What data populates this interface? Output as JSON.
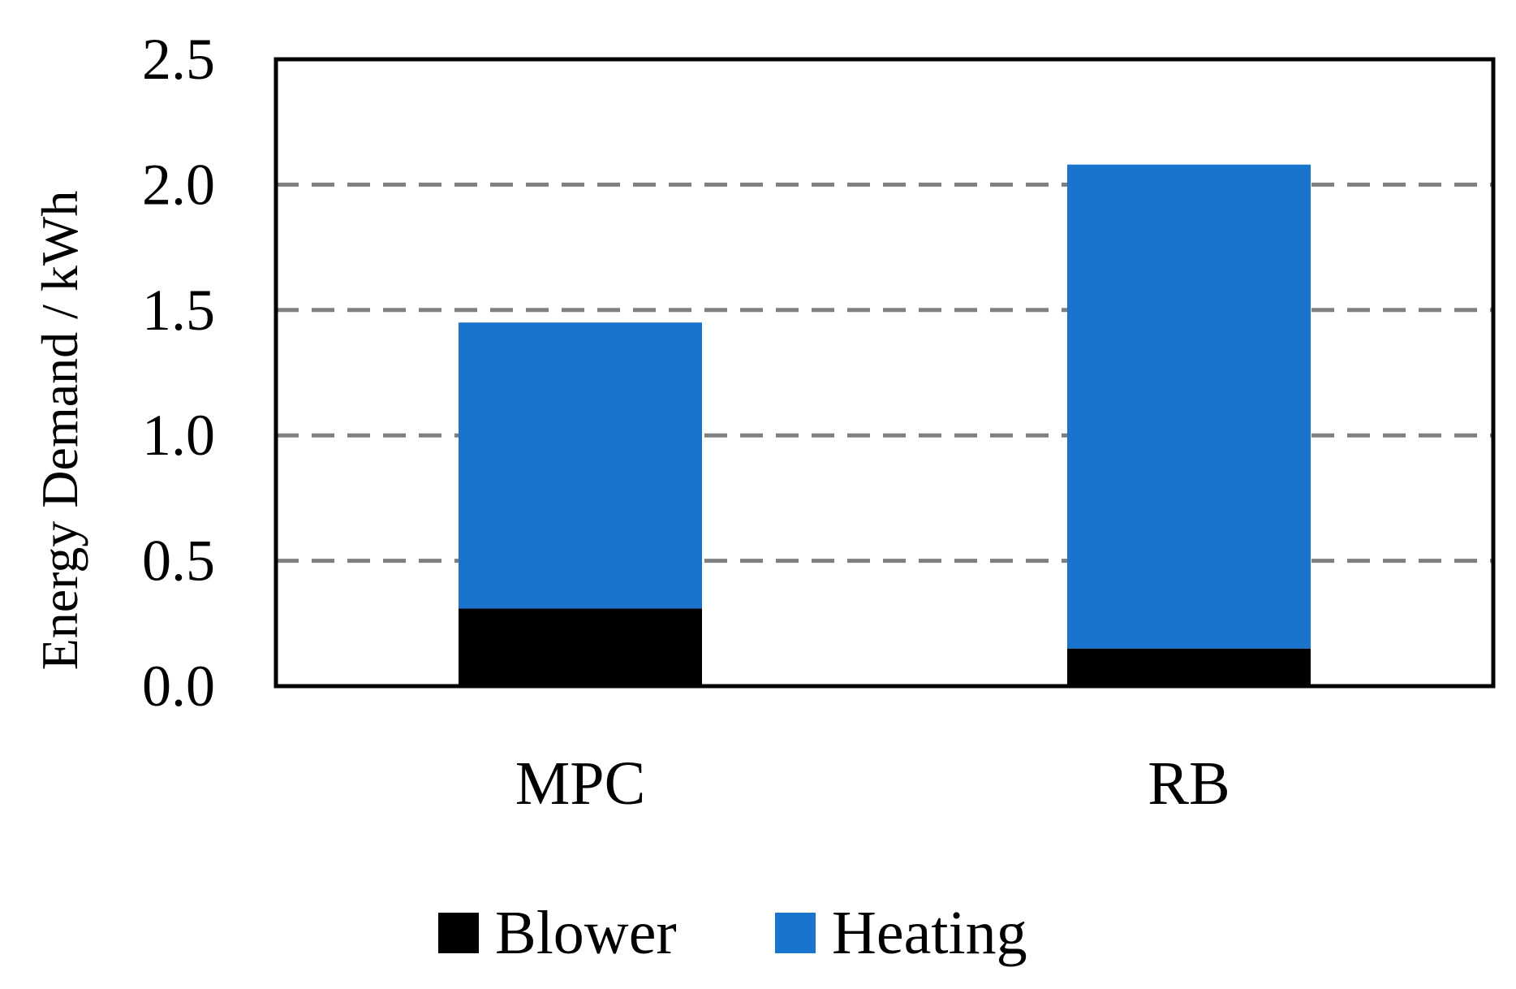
{
  "chart_data": {
    "type": "bar",
    "stacked": true,
    "categories": [
      "MPC",
      "RB"
    ],
    "series": [
      {
        "name": "Blower",
        "values": [
          0.31,
          0.15
        ],
        "color": "#000000"
      },
      {
        "name": "Heating",
        "values": [
          1.14,
          1.93
        ],
        "color": "#1874CD"
      }
    ],
    "xlabel": "",
    "ylabel": "Energy Demand / kWh",
    "ylim": [
      0,
      2.5
    ],
    "yticks": [
      "0.0",
      "0.5",
      "1.0",
      "1.5",
      "2.0",
      "2.5"
    ],
    "grid": "horizontal dashed",
    "legend_position": "bottom"
  }
}
